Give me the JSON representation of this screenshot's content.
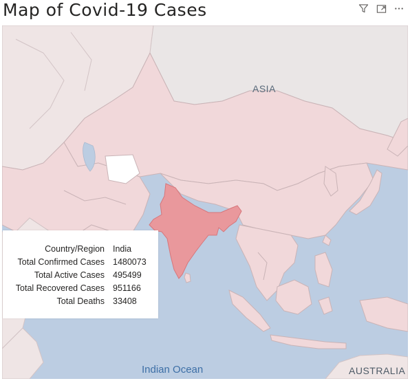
{
  "visual": {
    "title": "Map of Covid-19 Cases",
    "header_icons": [
      "filter-icon",
      "focus-mode-icon",
      "more-options-icon"
    ]
  },
  "map": {
    "labels": {
      "asia": "ASIA",
      "indian_ocean": "Indian Ocean",
      "australia": "AUSTRALIA"
    },
    "colors": {
      "water": "#bccde2",
      "land": "#efe5e5",
      "asia_shade": "#f1d8da",
      "highlight": "#e9989c",
      "border": "#c9b3b6"
    }
  },
  "tooltip": {
    "rows": [
      {
        "label": "Country/Region",
        "value": "India"
      },
      {
        "label": "Total Confirmed Cases",
        "value": "1480073"
      },
      {
        "label": "Total Active Cases",
        "value": "495499"
      },
      {
        "label": "Total Recovered Cases",
        "value": "951166"
      },
      {
        "label": "Total Deaths",
        "value": "33408"
      }
    ]
  }
}
